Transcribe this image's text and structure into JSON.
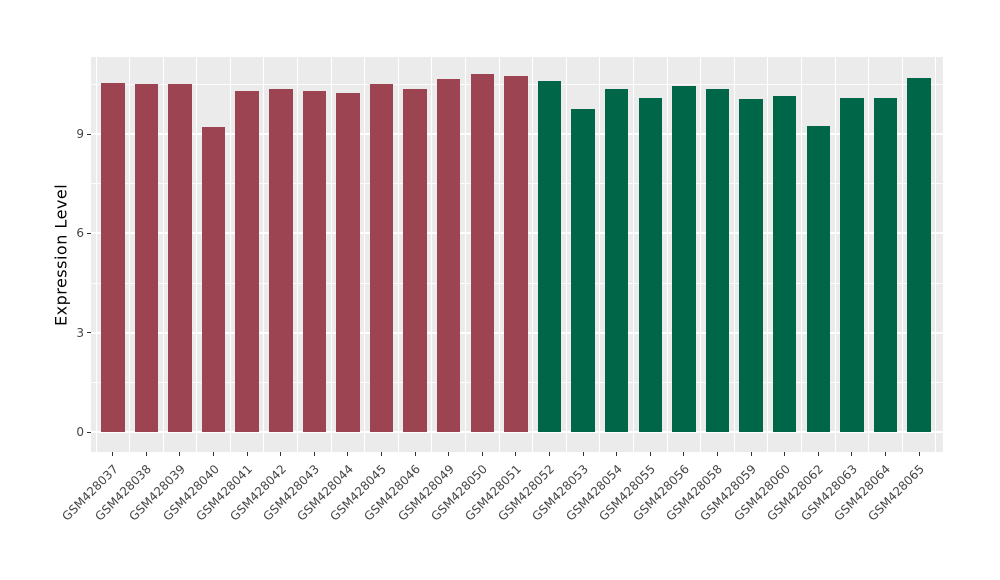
{
  "figure": {
    "background_color": "#FFFFFF",
    "panel_background_color": "#EBEBEB",
    "gridline_color": "#FFFFFF",
    "axis_text_color": "#454545",
    "axis_title_color": "#000000",
    "tick_mark_color": "#333333"
  },
  "chart_data": {
    "type": "bar",
    "title": "",
    "xlabel": "",
    "ylabel": "Expression Level",
    "ylim": [
      -0.6,
      11.35
    ],
    "yticks": [
      0,
      3,
      6,
      9
    ],
    "minor_gridlines": [
      1.5,
      4.5,
      7.5,
      10.5
    ],
    "grid": true,
    "legend_position": "none",
    "x_label_rotation_deg": 45,
    "categories": [
      "GSM428037",
      "GSM428038",
      "GSM428039",
      "GSM428040",
      "GSM428041",
      "GSM428042",
      "GSM428043",
      "GSM428044",
      "GSM428045",
      "GSM428046",
      "GSM428049",
      "GSM428050",
      "GSM428051",
      "GSM428052",
      "GSM428053",
      "GSM428054",
      "GSM428055",
      "GSM428056",
      "GSM428058",
      "GSM428059",
      "GSM428060",
      "GSM428062",
      "GSM428063",
      "GSM428064",
      "GSM428065"
    ],
    "values": [
      10.55,
      10.5,
      10.5,
      9.2,
      10.3,
      10.35,
      10.3,
      10.25,
      10.5,
      10.35,
      10.65,
      10.8,
      10.75,
      10.6,
      9.75,
      10.35,
      10.1,
      10.45,
      10.35,
      10.05,
      10.15,
      9.25,
      10.1,
      10.1,
      10.7
    ],
    "bar_groups": [
      1,
      1,
      1,
      1,
      1,
      1,
      1,
      1,
      1,
      1,
      1,
      1,
      1,
      2,
      2,
      2,
      2,
      2,
      2,
      2,
      2,
      2,
      2,
      2,
      2
    ],
    "group_colors": {
      "1": "#9C4452",
      "2": "#006648"
    }
  }
}
